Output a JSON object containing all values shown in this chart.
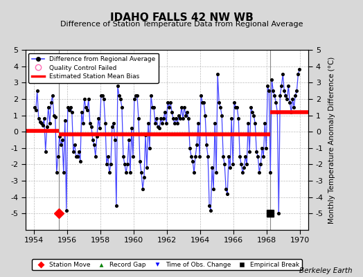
{
  "title": "IDAHO FALLS 42 NW WB",
  "subtitle": "Difference of Station Temperature Data from Regional Average",
  "ylabel": "Monthly Temperature Anomaly Difference (°C)",
  "xlabel_years": [
    1954,
    1956,
    1958,
    1960,
    1962,
    1964,
    1966,
    1968,
    1970
  ],
  "xlim": [
    1953.5,
    1970.5
  ],
  "ylim": [
    -6,
    5
  ],
  "yticks": [
    -5,
    -4,
    -3,
    -2,
    -1,
    0,
    1,
    2,
    3,
    4,
    5
  ],
  "background_color": "#d8d8d8",
  "plot_bg_color": "#ffffff",
  "line_color": "#4444ff",
  "dot_color": "#000000",
  "bias_color": "#ff0000",
  "watermark": "Berkeley Earth",
  "segment_biases": [
    {
      "x_start": 1953.5,
      "x_end": 1955.5,
      "bias": 0.05
    },
    {
      "x_start": 1955.5,
      "x_end": 1968.2,
      "bias": -0.15
    },
    {
      "x_start": 1968.2,
      "x_end": 1970.5,
      "bias": 1.2
    }
  ],
  "station_moves": [
    1955.5
  ],
  "record_gaps": [],
  "obs_changes": [],
  "empirical_breaks": [
    1968.2
  ],
  "vertical_lines": [
    1955.5,
    1968.2
  ],
  "time_series": [
    1954.042,
    1.5,
    1954.125,
    1.3,
    1954.208,
    2.5,
    1954.292,
    0.8,
    1954.375,
    0.6,
    1954.458,
    0.5,
    1954.542,
    0.4,
    1954.625,
    0.8,
    1954.708,
    -1.2,
    1954.792,
    0.3,
    1954.875,
    1.5,
    1954.958,
    0.5,
    1955.042,
    1.8,
    1955.125,
    2.2,
    1955.208,
    1.0,
    1955.292,
    0.9,
    1955.375,
    -2.5,
    1955.458,
    -1.5,
    1955.542,
    -0.3,
    1955.625,
    -0.8,
    1955.708,
    -0.5,
    1955.792,
    -2.5,
    1955.875,
    0.7,
    1955.958,
    -4.8,
    1956.042,
    1.5,
    1956.125,
    1.3,
    1956.208,
    1.5,
    1956.292,
    1.2,
    1956.375,
    -1.2,
    1956.458,
    -0.8,
    1956.542,
    -1.5,
    1956.625,
    -1.5,
    1956.708,
    -1.2,
    1956.792,
    -1.8,
    1956.875,
    1.2,
    1956.958,
    0.5,
    1957.042,
    2.0,
    1957.125,
    1.5,
    1957.208,
    1.3,
    1957.292,
    2.0,
    1957.375,
    0.5,
    1957.458,
    0.3,
    1957.542,
    -0.5,
    1957.625,
    -0.8,
    1957.708,
    -1.5,
    1957.792,
    -0.3,
    1957.875,
    0.8,
    1957.958,
    0.2,
    1958.042,
    2.2,
    1958.125,
    2.2,
    1958.208,
    2.0,
    1958.292,
    0.5,
    1958.375,
    -2.0,
    1958.458,
    -1.5,
    1958.542,
    -2.5,
    1958.625,
    -2.0,
    1958.708,
    0.3,
    1958.792,
    0.5,
    1958.875,
    -0.5,
    1958.958,
    -4.5,
    1959.042,
    2.8,
    1959.125,
    2.2,
    1959.208,
    2.0,
    1959.292,
    1.5,
    1959.375,
    -1.5,
    1959.458,
    -2.0,
    1959.542,
    -2.5,
    1959.625,
    -2.0,
    1959.708,
    -0.5,
    1959.792,
    -2.5,
    1959.875,
    0.2,
    1959.958,
    -1.5,
    1960.042,
    2.0,
    1960.125,
    2.2,
    1960.208,
    2.2,
    1960.292,
    0.8,
    1960.375,
    -1.8,
    1960.458,
    -2.5,
    1960.542,
    -3.5,
    1960.625,
    -2.8,
    1960.708,
    -0.2,
    1960.792,
    -2.2,
    1960.875,
    0.5,
    1960.958,
    -1.0,
    1961.042,
    2.2,
    1961.125,
    1.5,
    1961.208,
    1.5,
    1961.292,
    0.5,
    1961.375,
    0.8,
    1961.458,
    0.3,
    1961.542,
    0.2,
    1961.625,
    0.8,
    1961.708,
    0.5,
    1961.792,
    0.8,
    1961.875,
    1.2,
    1961.958,
    0.5,
    1962.042,
    1.8,
    1962.125,
    1.5,
    1962.208,
    1.8,
    1962.292,
    1.2,
    1962.375,
    0.8,
    1962.458,
    0.5,
    1962.542,
    0.8,
    1962.625,
    0.5,
    1962.708,
    1.0,
    1962.792,
    0.8,
    1962.875,
    1.5,
    1962.958,
    0.8,
    1963.042,
    1.5,
    1963.125,
    1.0,
    1963.208,
    1.2,
    1963.292,
    0.8,
    1963.375,
    -1.0,
    1963.458,
    -1.5,
    1963.542,
    -1.8,
    1963.625,
    -2.5,
    1963.708,
    -1.5,
    1963.792,
    -0.8,
    1963.875,
    0.5,
    1963.958,
    -1.5,
    1964.042,
    2.2,
    1964.125,
    1.8,
    1964.208,
    1.8,
    1964.292,
    1.0,
    1964.375,
    -0.8,
    1964.458,
    -1.5,
    1964.542,
    -4.5,
    1964.625,
    -4.8,
    1964.708,
    -2.2,
    1964.792,
    -3.5,
    1964.875,
    0.5,
    1964.958,
    -2.5,
    1965.042,
    3.5,
    1965.125,
    1.8,
    1965.208,
    1.5,
    1965.292,
    1.0,
    1965.375,
    -1.5,
    1965.458,
    -2.0,
    1965.542,
    -3.5,
    1965.625,
    -3.8,
    1965.708,
    -1.5,
    1965.792,
    -2.2,
    1965.875,
    0.8,
    1965.958,
    -2.0,
    1966.042,
    1.8,
    1966.125,
    1.5,
    1966.208,
    1.5,
    1966.292,
    0.8,
    1966.375,
    -1.5,
    1966.458,
    -2.0,
    1966.542,
    -2.5,
    1966.625,
    -2.2,
    1966.708,
    -1.5,
    1966.792,
    -2.0,
    1966.875,
    0.5,
    1966.958,
    -1.2,
    1967.042,
    1.5,
    1967.125,
    1.2,
    1967.208,
    1.0,
    1967.292,
    0.5,
    1967.375,
    -1.2,
    1967.458,
    -1.5,
    1967.542,
    -2.5,
    1967.625,
    -2.0,
    1967.708,
    -1.0,
    1967.792,
    -1.5,
    1967.875,
    0.5,
    1967.958,
    -1.0,
    1968.042,
    2.8,
    1968.125,
    2.5,
    1968.208,
    -2.5,
    1968.292,
    3.2,
    1968.375,
    2.5,
    1968.458,
    2.2,
    1968.542,
    1.8,
    1968.625,
    1.2,
    1968.708,
    -5.0,
    1968.792,
    2.2,
    1968.875,
    2.8,
    1968.958,
    3.5,
    1969.042,
    2.5,
    1969.125,
    2.2,
    1969.208,
    2.0,
    1969.292,
    2.8,
    1969.375,
    1.8,
    1969.458,
    1.2,
    1969.542,
    2.0,
    1969.625,
    1.5,
    1969.708,
    2.2,
    1969.792,
    2.5,
    1969.875,
    3.5,
    1969.958,
    3.8
  ]
}
